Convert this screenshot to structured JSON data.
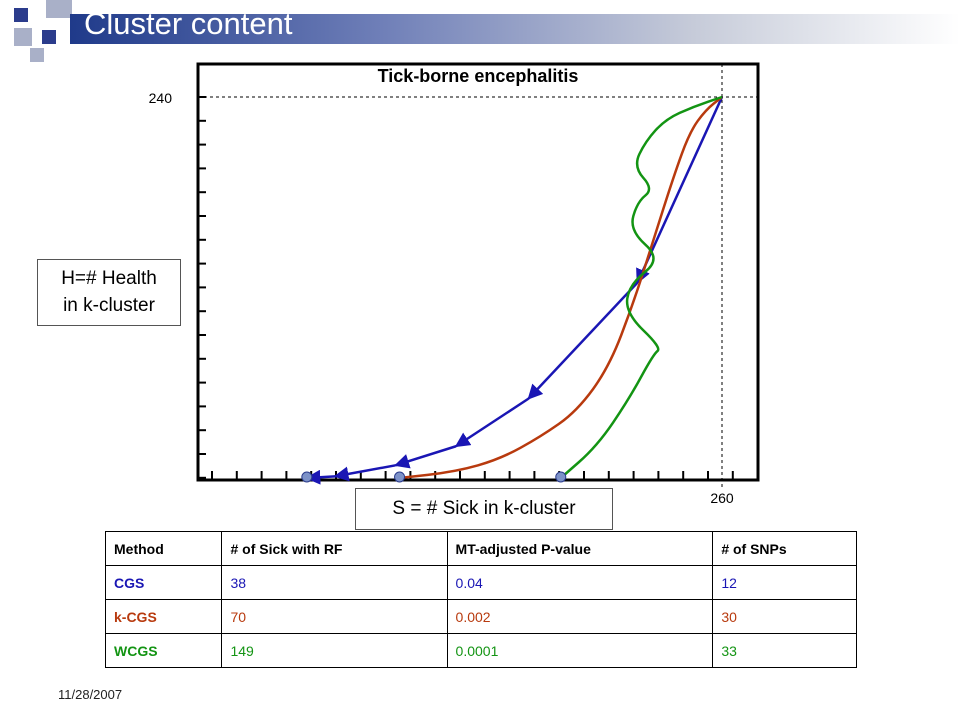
{
  "slide": {
    "title": "Cluster content",
    "date": "11/28/2007",
    "colors": {
      "title_bar": "#1f3a8a",
      "deco_blue": "#2b3c8c",
      "deco_gray": "#a9b0c8"
    }
  },
  "chart_data": {
    "type": "line",
    "title": "Tick-borne encephalitis",
    "xlabel": "S = # Sick in k-cluster",
    "ylabel": "H=# Health\nin k-cluster",
    "xtick_labels": [
      "260"
    ],
    "ytick_labels": [
      "240"
    ],
    "xlim": [
      0,
      260
    ],
    "ylim": [
      0,
      240
    ],
    "grid": false,
    "series": [
      {
        "name": "CGS",
        "color": "#1a16b4",
        "marker": "arrows",
        "points": [
          [
            260,
            240
          ],
          [
            218,
            123
          ],
          [
            164,
            50
          ],
          [
            128,
            20
          ],
          [
            98,
            8
          ],
          [
            68,
            1
          ],
          [
            54,
            0
          ]
        ]
      },
      {
        "name": "k-CGS",
        "color": "#b83a0e",
        "marker": "none",
        "points": [
          [
            100,
            0
          ],
          [
            128,
            4
          ],
          [
            150,
            12
          ],
          [
            170,
            26
          ],
          [
            188,
            42
          ],
          [
            204,
            70
          ],
          [
            216,
            110
          ],
          [
            226,
            150
          ],
          [
            236,
            190
          ],
          [
            244,
            218
          ],
          [
            252,
            232
          ],
          [
            260,
            240
          ]
        ]
      },
      {
        "name": "WCGS",
        "color": "#139413",
        "marker": "none",
        "points": [
          [
            180,
            0
          ],
          [
            198,
            20
          ],
          [
            214,
            50
          ],
          [
            226,
            78
          ],
          [
            230,
            82
          ],
          [
            212,
            104
          ],
          [
            214,
            122
          ],
          [
            230,
            138
          ],
          [
            214,
            156
          ],
          [
            218,
            174
          ],
          [
            226,
            182
          ],
          [
            216,
            196
          ],
          [
            222,
            212
          ],
          [
            232,
            226
          ],
          [
            246,
            234
          ],
          [
            260,
            240
          ]
        ]
      }
    ],
    "markers": [
      [
        54,
        0
      ],
      [
        100,
        0
      ],
      [
        180,
        0
      ]
    ]
  },
  "callouts": {
    "health": "H=# Health\nin k-cluster",
    "sick": "S = # Sick in k-cluster"
  },
  "table": {
    "headers": [
      "Method",
      "# of Sick with RF",
      "MT-adjusted P-value",
      "# of SNPs"
    ],
    "rows": [
      {
        "color": "#1a16b4",
        "cells": [
          "CGS",
          "38",
          "0.04",
          "12"
        ]
      },
      {
        "color": "#b83a0e",
        "cells": [
          "k-CGS",
          "70",
          "0.002",
          "30"
        ]
      },
      {
        "color": "#139413",
        "cells": [
          "WCGS",
          "149",
          "0.0001",
          "33"
        ]
      }
    ]
  }
}
